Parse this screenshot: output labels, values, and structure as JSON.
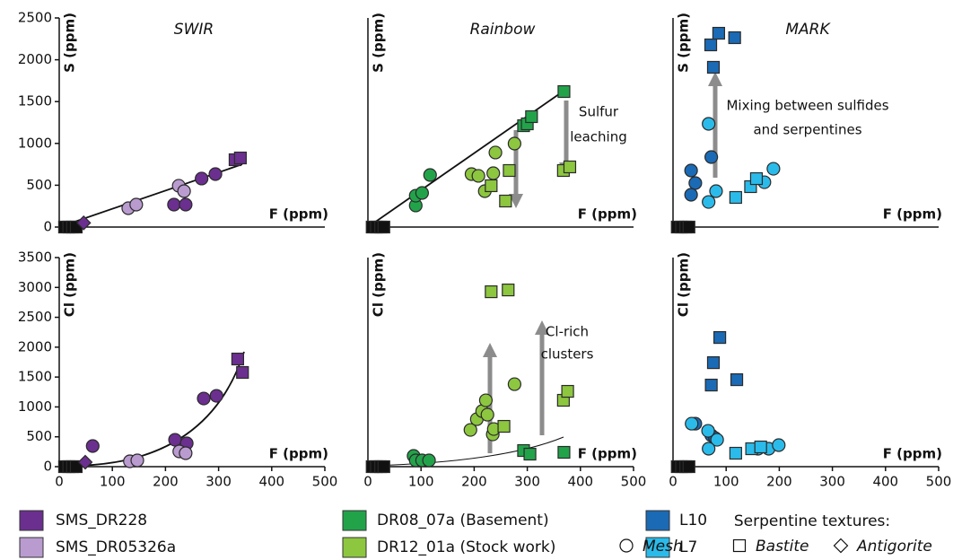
{
  "chart_data": [
    {
      "type": "scatter",
      "title": "SWIR",
      "xlabel": "F (ppm)",
      "ylabel": "S (ppm)",
      "xlim": [
        0,
        500
      ],
      "ylim": [
        0,
        2500
      ],
      "yticks": [
        0,
        500,
        1000,
        1500,
        2000,
        2500
      ],
      "series": [
        {
          "color": "#111111",
          "x": [
            10,
            18,
            25,
            32
          ],
          "values": [
            0,
            0,
            0,
            0
          ],
          "markers": [
            "square",
            "square",
            "square",
            "square"
          ]
        },
        {
          "name": "SMS_DR228",
          "color": "#6b2f8f",
          "x": [
            216,
            238,
            268,
            294,
            331,
            341,
            46
          ],
          "values": [
            268,
            268,
            580,
            633,
            805,
            826,
            50
          ],
          "markers": [
            "circle",
            "circle",
            "circle",
            "circle",
            "square",
            "square",
            "diamond"
          ]
        },
        {
          "name": "SMS_DR05326a",
          "color": "#b99bd0",
          "x": [
            130,
            145,
            225,
            235
          ],
          "values": [
            225,
            268,
            494,
            429
          ],
          "markers": [
            "circle",
            "circle",
            "circle",
            "circle"
          ]
        }
      ]
    },
    {
      "type": "scatter",
      "title": "Rainbow",
      "xlabel": "F (ppm)",
      "ylabel": "S (ppm)",
      "xlim": [
        0,
        500
      ],
      "ylim": [
        0,
        2500
      ],
      "annotations": [
        {
          "lines": [
            "Sulfur",
            "leaching"
          ]
        }
      ],
      "series": [
        {
          "color": "#111111",
          "x": [
            8,
            16,
            24,
            30
          ],
          "values": [
            0,
            0,
            0,
            0
          ],
          "markers": [
            "square",
            "square",
            "square",
            "square"
          ]
        },
        {
          "name": "DR08_07a (Basement)",
          "color": "#22a34a",
          "x": [
            90,
            90,
            102,
            117,
            293,
            300,
            308,
            369
          ],
          "values": [
            258,
            375,
            408,
            622,
            1212,
            1234,
            1320,
            1620
          ],
          "markers": [
            "circle",
            "circle",
            "circle",
            "circle",
            "square",
            "square",
            "square",
            "square"
          ]
        },
        {
          "name": "DR12_01a (Stock work)",
          "color": "#8dc63f",
          "x": [
            195,
            208,
            220,
            236,
            240,
            276,
            232,
            259,
            266,
            368,
            380
          ],
          "values": [
            633,
            612,
            429,
            644,
            891,
            998,
            494,
            311,
            676,
            676,
            719
          ],
          "markers": [
            "circle",
            "circle",
            "circle",
            "circle",
            "circle",
            "circle",
            "square",
            "square",
            "square",
            "square",
            "square"
          ]
        }
      ]
    },
    {
      "type": "scatter",
      "title": "MARK",
      "xlabel": "F (ppm)",
      "ylabel": "S (ppm)",
      "xlim": [
        0,
        500
      ],
      "ylim": [
        0,
        2500
      ],
      "annotations": [
        {
          "lines": [
            "Mixing between sulfides",
            "and serpentines"
          ]
        }
      ],
      "series": [
        {
          "color": "#111111",
          "x": [
            8,
            16,
            24,
            30
          ],
          "values": [
            0,
            0,
            0,
            0
          ],
          "markers": [
            "square",
            "square",
            "square",
            "square"
          ]
        },
        {
          "name": "L10",
          "color": "#1b6ab5",
          "x": [
            34,
            42,
            34,
            72,
            71,
            86,
            116,
            76
          ],
          "values": [
            676,
            526,
            386,
            837,
            2178,
            2317,
            2264,
            1910
          ],
          "markers": [
            "circle",
            "circle",
            "circle",
            "circle",
            "square",
            "square",
            "square",
            "square"
          ]
        },
        {
          "name": "L7",
          "color": "#2bbbea",
          "x": [
            67,
            81,
            67,
            189,
            172,
            118,
            146,
            157
          ],
          "values": [
            1234,
            429,
            300,
            697,
            536,
            354,
            483,
            579
          ],
          "markers": [
            "circle",
            "circle",
            "circle",
            "circle",
            "circle",
            "square",
            "square",
            "square"
          ]
        }
      ]
    },
    {
      "type": "scatter",
      "xlabel": "F (ppm)",
      "ylabel": "Cl (ppm)",
      "xlim": [
        0,
        500
      ],
      "ylim": [
        0,
        3500
      ],
      "xticks": [
        0,
        100,
        200,
        300,
        400,
        500
      ],
      "yticks": [
        0,
        500,
        1000,
        1500,
        2000,
        2500,
        3000,
        3500
      ],
      "series": [
        {
          "color": "#111111",
          "x": [
            10,
            18,
            25,
            32
          ],
          "values": [
            0,
            0,
            0,
            0
          ],
          "markers": [
            "square",
            "square",
            "square",
            "square"
          ]
        },
        {
          "name": "SMS_DR228",
          "color": "#6b2f8f",
          "x": [
            63,
            218,
            240,
            272,
            296,
            336,
            345,
            49
          ],
          "values": [
            345,
            450,
            390,
            1141,
            1186,
            1802,
            1577,
            75
          ],
          "markers": [
            "circle",
            "circle",
            "circle",
            "circle",
            "circle",
            "square",
            "square",
            "diamond"
          ]
        },
        {
          "name": "SMS_DR05326a",
          "color": "#b99bd0",
          "x": [
            133,
            147,
            226,
            238
          ],
          "values": [
            90,
            105,
            255,
            225
          ],
          "markers": [
            "circle",
            "circle",
            "circle",
            "circle"
          ]
        }
      ]
    },
    {
      "type": "scatter",
      "xlabel": "F (ppm)",
      "ylabel": "Cl (ppm)",
      "xlim": [
        0,
        500
      ],
      "ylim": [
        0,
        3500
      ],
      "xticks": [
        0,
        100,
        200,
        300,
        400,
        500
      ],
      "annotations": [
        {
          "lines": [
            "Cl-rich",
            "clusters"
          ]
        }
      ],
      "series": [
        {
          "color": "#111111",
          "x": [
            8,
            16,
            24,
            30
          ],
          "values": [
            0,
            0,
            0,
            0
          ],
          "markers": [
            "square",
            "square",
            "square",
            "square"
          ]
        },
        {
          "name": "DR08_07a (Basement)",
          "color": "#22a34a",
          "x": [
            86,
            90,
            102,
            115,
            293,
            305,
            369
          ],
          "values": [
            180,
            105,
            105,
            105,
            270,
            210,
            240
          ],
          "markers": [
            "circle",
            "circle",
            "circle",
            "circle",
            "square",
            "square",
            "square"
          ]
        },
        {
          "name": "DR12_01a (Stock work)",
          "color": "#8dc63f",
          "x": [
            193,
            205,
            215,
            222,
            225,
            235,
            237,
            276,
            232,
            264,
            256,
            368,
            376
          ],
          "values": [
            615,
            795,
            930,
            1111,
            870,
            540,
            630,
            1381,
            2928,
            2958,
            675,
            1111,
            1261
          ],
          "markers": [
            "circle",
            "circle",
            "circle",
            "circle",
            "circle",
            "circle",
            "circle",
            "circle",
            "square",
            "square",
            "square",
            "square",
            "square"
          ]
        }
      ]
    },
    {
      "type": "scatter",
      "xlabel": "F (ppm)",
      "ylabel": "Cl (ppm)",
      "xlim": [
        0,
        500
      ],
      "ylim": [
        0,
        3500
      ],
      "xticks": [
        0,
        100,
        200,
        300,
        400,
        500
      ],
      "series": [
        {
          "color": "#111111",
          "x": [
            8,
            16,
            24,
            30
          ],
          "values": [
            0,
            0,
            0,
            0
          ],
          "markers": [
            "square",
            "square",
            "square",
            "square"
          ]
        },
        {
          "name": "L10",
          "color": "#1b6ab5",
          "x": [
            88,
            76,
            72,
            120,
            42,
            72,
            79
          ],
          "values": [
            2162,
            1741,
            1366,
            1456,
            720,
            525,
            480
          ],
          "markers": [
            "square",
            "square",
            "square",
            "square",
            "circle",
            "circle",
            "circle"
          ]
        },
        {
          "name": "L7",
          "color": "#2bbbea",
          "x": [
            35,
            66,
            83,
            67,
            160,
            180,
            199,
            118,
            148,
            165
          ],
          "values": [
            720,
            600,
            450,
            300,
            300,
            300,
            360,
            225,
            300,
            330
          ],
          "markers": [
            "circle",
            "circle",
            "circle",
            "circle",
            "circle",
            "circle",
            "circle",
            "square",
            "square",
            "square"
          ]
        }
      ]
    }
  ],
  "texture_legend": {
    "title": "Serpentine textures:",
    "items": [
      {
        "label": "Mesh",
        "marker": "circle"
      },
      {
        "label": "Bastite",
        "marker": "square"
      },
      {
        "label": "Antigorite",
        "marker": "diamond"
      }
    ]
  }
}
